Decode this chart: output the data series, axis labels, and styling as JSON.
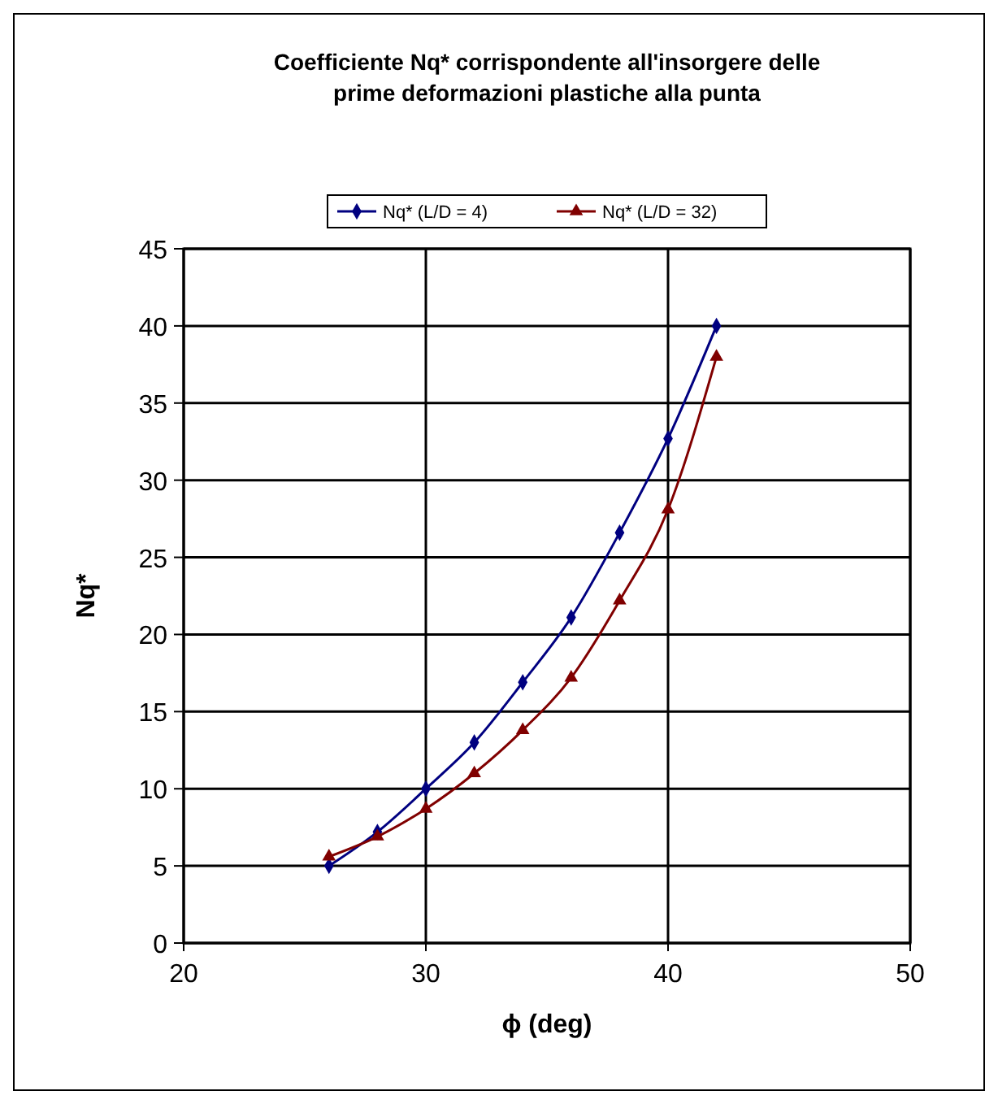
{
  "chart_data": {
    "type": "line",
    "title": "Coefficiente Nq* corrispondente all'insorgere delle\nprime deformazioni plastiche alla punta",
    "xlabel": "ϕ (deg)",
    "ylabel": "Nq*",
    "x": [
      26,
      28,
      30,
      32,
      34,
      36,
      38,
      40,
      42
    ],
    "series": [
      {
        "name": "Nq* (L/D = 4)",
        "color": "#000080",
        "marker": "diamond",
        "values": [
          5,
          7.2,
          10,
          13,
          16.9,
          21.1,
          26.6,
          32.7,
          40
        ]
      },
      {
        "name": "Nq* (L/D = 32)",
        "color": "#800000",
        "marker": "triangle",
        "values": [
          5.6,
          6.9,
          8.7,
          11,
          13.8,
          17.2,
          22.2,
          28.1,
          38
        ]
      }
    ],
    "xlim": [
      20,
      50
    ],
    "xticks": [
      20,
      30,
      40,
      50
    ],
    "ylim": [
      0,
      45
    ],
    "yticks": [
      0,
      5,
      10,
      15,
      20,
      25,
      30,
      35,
      40,
      45
    ],
    "grid": true,
    "legend": "top",
    "line_style": "solid"
  }
}
